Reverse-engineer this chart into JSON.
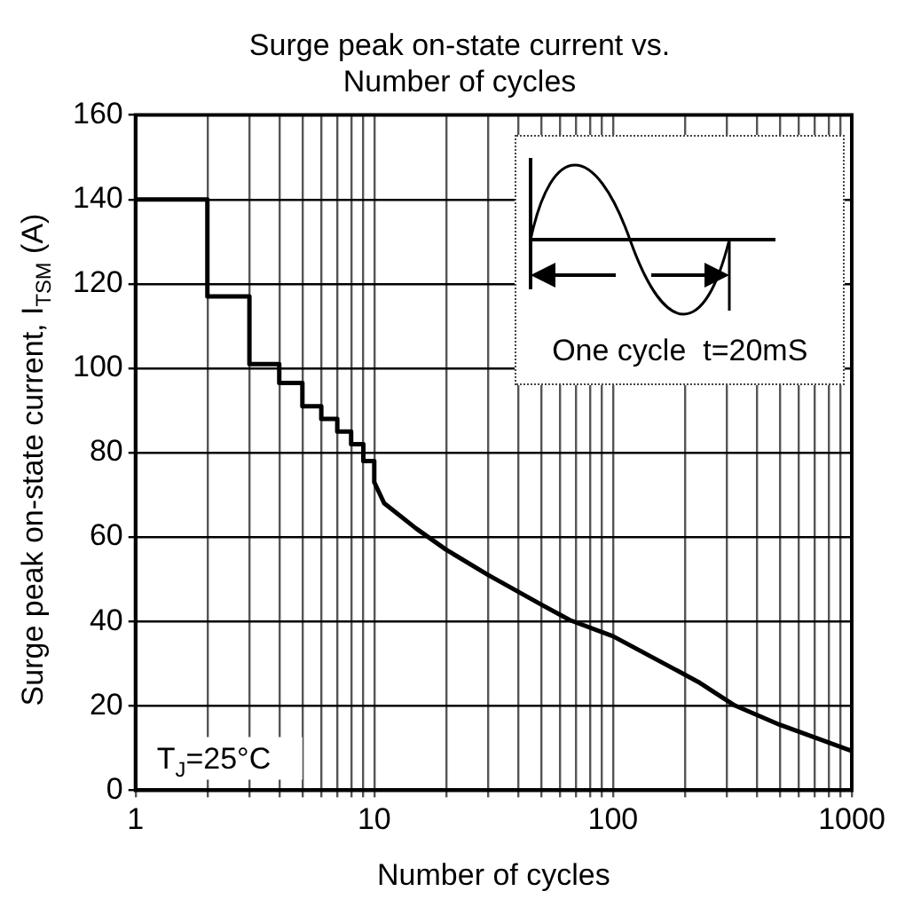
{
  "chart_data": {
    "type": "line",
    "title": "Surge peak on-state current vs.\nNumber of cycles",
    "xlabel": "Number of cycles",
    "ylabel": "Surge peak on-state current, I$_{TSM}$ (A)",
    "series": [
      {
        "color": "#000000",
        "x": [
          1,
          2,
          2,
          3,
          3,
          4,
          4,
          5,
          5,
          6,
          6,
          7,
          7,
          8,
          8,
          9,
          9,
          10,
          10,
          11,
          15,
          20,
          30,
          50,
          66,
          100,
          227,
          323,
          500,
          1000
        ],
        "values": [
          140,
          140,
          117,
          117,
          101,
          101,
          96.5,
          96.5,
          91,
          91,
          88,
          88,
          85,
          85,
          82,
          82,
          78,
          78,
          73,
          68,
          62,
          57,
          51,
          44,
          40.3,
          36.5,
          25.7,
          20.1,
          15.5,
          9.3
        ]
      }
    ],
    "log": "x",
    "xlim": [
      1,
      1000
    ],
    "ylim": [
      0,
      160
    ],
    "xticks": [
      1,
      {
        "value": 2,
        "label": null
      },
      {
        "value": 3,
        "label": null
      },
      {
        "value": 4,
        "label": null
      },
      {
        "value": 5,
        "label": null
      },
      {
        "value": 6,
        "label": null
      },
      {
        "value": 7,
        "label": null
      },
      {
        "value": 8,
        "label": null
      },
      {
        "value": 9,
        "label": null
      },
      10,
      {
        "value": 20,
        "label": null
      },
      {
        "value": 30,
        "label": null
      },
      {
        "value": 40,
        "label": null
      },
      {
        "value": 50,
        "label": null
      },
      {
        "value": 60,
        "label": null
      },
      {
        "value": 70,
        "label": null
      },
      {
        "value": 80,
        "label": null
      },
      {
        "value": 90,
        "label": null
      },
      100,
      {
        "value": 200,
        "label": null
      },
      {
        "value": 300,
        "label": null
      },
      {
        "value": 400,
        "label": null
      },
      {
        "value": 500,
        "label": null
      },
      {
        "value": 600,
        "label": null
      },
      {
        "value": 700,
        "label": null
      },
      {
        "value": 800,
        "label": null
      },
      {
        "value": 900,
        "label": null
      },
      1000
    ],
    "yticks": [
      0,
      20,
      40,
      60,
      80,
      100,
      120,
      140,
      160
    ],
    "grid": true,
    "annotations": [
      "One cycle  t=20mS",
      "T$_{J}$=25°C"
    ]
  }
}
